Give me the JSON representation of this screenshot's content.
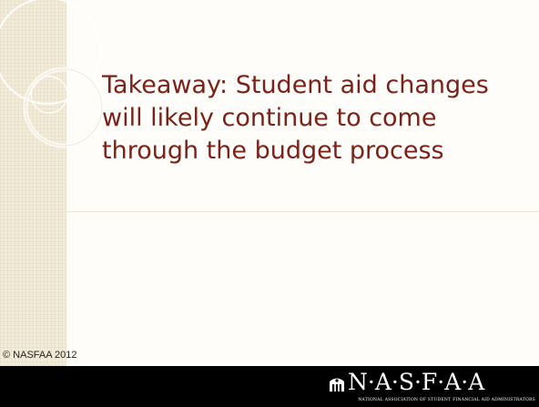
{
  "slide": {
    "title": "Takeaway: Student aid changes will likely continue to come through the budget process",
    "copyright": "© NASFAA 2012"
  },
  "footer": {
    "logo_text": "N·A·S·F·A·A",
    "logo_subtitle": "NATIONAL ASSOCIATION OF STUDENT FINANCIAL AID ADMINISTRATORS",
    "logo_icon": "building-icon"
  },
  "colors": {
    "title": "#7a2118",
    "sidebar": "#f4ecda",
    "footer": "#000000",
    "slide_background": "#fffdfa"
  }
}
